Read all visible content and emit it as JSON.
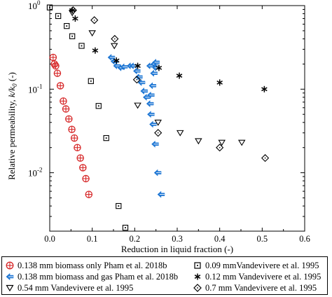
{
  "chart_data": {
    "type": "scatter",
    "xlabel": "Reduction in liquid fraction (-)",
    "ylabel_main": "Relative permeability, ",
    "ylabel_math": "k/k",
    "ylabel_sub": "0",
    "ylabel_unit": " (-)",
    "xlim": [
      0,
      0.6
    ],
    "ylim": [
      0.002,
      1
    ],
    "yscale": "log",
    "x_ticks": [
      "0.0",
      "0.1",
      "0.2",
      "0.3",
      "0.4",
      "0.5",
      "0.6"
    ],
    "y_tick_labels": [
      {
        "base": "10",
        "exp": "-2",
        "value": 0.01
      },
      {
        "base": "10",
        "exp": "-1",
        "value": 0.1
      },
      {
        "base": "10",
        "exp": "0",
        "value": 1
      }
    ],
    "legend_placement": "bottom",
    "series": [
      {
        "name": "0.138 mm biomass only Pham et al. 2018b",
        "marker": "circle-plus",
        "color": "#d62728",
        "x": [
          0.008,
          0.011,
          0.014,
          0.018,
          0.025,
          0.032,
          0.038,
          0.045,
          0.052,
          0.058,
          0.065,
          0.072,
          0.078,
          0.085,
          0.092
        ],
        "y": [
          0.24,
          0.2,
          0.19,
          0.155,
          0.11,
          0.072,
          0.058,
          0.044,
          0.033,
          0.026,
          0.02,
          0.015,
          0.0115,
          0.0085,
          0.0055
        ]
      },
      {
        "name": "0.138 mm biomass and gas Pham et al. 2018b",
        "marker": "arrow-left",
        "color": "#1f77d4",
        "x": [
          0.145,
          0.152,
          0.158,
          0.168,
          0.175,
          0.19,
          0.197,
          0.205,
          0.21,
          0.216,
          0.222,
          0.228,
          0.236,
          0.246,
          0.25,
          0.25,
          0.245,
          0.242,
          0.238,
          0.236,
          0.238,
          0.243,
          0.248,
          0.254,
          0.262
        ],
        "y": [
          0.24,
          0.215,
          0.19,
          0.18,
          0.185,
          0.19,
          0.19,
          0.165,
          0.14,
          0.12,
          0.095,
          0.08,
          0.19,
          0.2,
          0.21,
          0.18,
          0.155,
          0.11,
          0.085,
          0.067,
          0.05,
          0.038,
          0.022,
          0.01,
          0.0055
        ]
      },
      {
        "name": "0.09 mmVandevivere et al. 1995",
        "marker": "square-dot",
        "color": "#000000",
        "x": [
          0.0,
          0.02,
          0.04,
          0.053,
          0.075,
          0.097,
          0.115,
          0.133,
          0.162,
          0.178
        ],
        "y": [
          0.95,
          0.75,
          0.57,
          0.43,
          0.33,
          0.125,
          0.063,
          0.026,
          0.004,
          0.0022
        ]
      },
      {
        "name": "0.12 mm Vandevivere et al. 1995",
        "marker": "asterisk",
        "color": "#000000",
        "x": [
          0.053,
          0.06,
          0.107,
          0.157,
          0.207,
          0.257,
          0.305,
          0.4,
          0.505
        ],
        "y": [
          0.88,
          0.7,
          0.29,
          0.22,
          0.19,
          0.18,
          0.145,
          0.12,
          0.1
        ]
      },
      {
        "name": "0.54 mm Vandevivere et al. 1995",
        "marker": "triangle-down",
        "color": "#000000",
        "x": [
          0.053,
          0.1,
          0.152,
          0.207,
          0.255,
          0.307,
          0.35,
          0.405,
          0.452
        ],
        "y": [
          0.82,
          0.47,
          0.33,
          0.064,
          0.04,
          0.03,
          0.024,
          0.023,
          0.023
        ]
      },
      {
        "name": "0.7 mm Vandevivere et al. 1995",
        "marker": "diamond",
        "color": "#000000",
        "x": [
          0.055,
          0.105,
          0.153,
          0.205,
          0.255,
          0.4,
          0.507
        ],
        "y": [
          0.88,
          0.67,
          0.4,
          0.13,
          0.03,
          0.02,
          0.015
        ]
      }
    ]
  }
}
